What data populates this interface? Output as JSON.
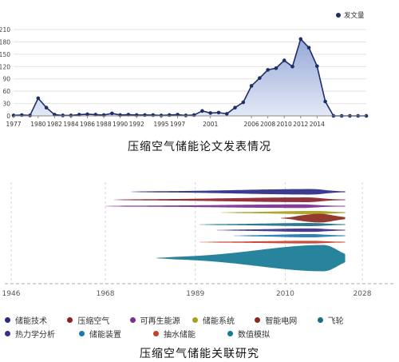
{
  "chart_data": [
    {
      "type": "area",
      "title": "压缩空气储能论文发表情况",
      "legend": [
        "发文量"
      ],
      "legend_position": "top-right",
      "color": "#1f2d6b",
      "fill_color": "#8fa3d4",
      "y_ticks": [
        0,
        30,
        60,
        90,
        120,
        150,
        180,
        210
      ],
      "ylim": [
        0,
        210
      ],
      "x_tick_labels": [
        "1977",
        "1980",
        "1982",
        "1984",
        "1986",
        "1988",
        "1990",
        "1992",
        "1995",
        "1997",
        "2001",
        "2006",
        "2008",
        "2010",
        "2012",
        "2014"
      ],
      "grid": true,
      "series": [
        {
          "name": "发文量",
          "x": [
            1977,
            1978,
            1979,
            1980,
            1981,
            1982,
            1983,
            1984,
            1985,
            1986,
            1987,
            1988,
            1989,
            1990,
            1991,
            1992,
            1993,
            1994,
            1995,
            1996,
            1997,
            1998,
            1999,
            2000,
            2001,
            2002,
            2003,
            2004,
            2005,
            2006,
            2007,
            2008,
            2009,
            2010,
            2011,
            2012,
            2013,
            2014,
            2015,
            2016,
            2017,
            2018,
            2019,
            2020
          ],
          "values": [
            1,
            2,
            1,
            43,
            20,
            3,
            1,
            1,
            3,
            4,
            3,
            2,
            6,
            2,
            3,
            2,
            2,
            2,
            1,
            2,
            3,
            1,
            2,
            12,
            7,
            8,
            5,
            20,
            33,
            73,
            92,
            112,
            116,
            135,
            120,
            187,
            166,
            121,
            35,
            0,
            0,
            0,
            0,
            0
          ]
        }
      ]
    },
    {
      "type": "streamgraph",
      "title": "压缩空气储能关联研究",
      "x_ticks": [
        1946,
        1968,
        1989,
        2010,
        2028
      ],
      "xlim": [
        1946,
        2028
      ],
      "legend_position": "bottom",
      "series": [
        {
          "name": "储能技术",
          "color": "#2a2a86",
          "start": 1974,
          "peak_year": 2016,
          "peak": 3.0
        },
        {
          "name": "压缩空气",
          "color": "#8b1f2a",
          "start": 1970,
          "peak_year": 2015,
          "peak": 2.5
        },
        {
          "name": "可再生能源",
          "color": "#7a2f8f",
          "start": 1968,
          "peak_year": 2014,
          "peak": 1.8
        },
        {
          "name": "储能系统",
          "color": "#a7a019",
          "start": 1995,
          "peak_year": 2017,
          "peak": 1.6
        },
        {
          "name": "智能电网",
          "color": "#8a2a1e",
          "start": 2009,
          "peak_year": 2018,
          "peak": 5.0
        },
        {
          "name": "飞轮",
          "color": "#1a6f86",
          "start": 1990,
          "peak_year": 2016,
          "peak": 1.5
        },
        {
          "name": "热力学分析",
          "color": "#3b2c85",
          "start": 1994,
          "peak_year": 2016,
          "peak": 1.7
        },
        {
          "name": "储能装置",
          "color": "#1e78b4",
          "start": 1998,
          "peak_year": 2016,
          "peak": 1.6
        },
        {
          "name": "抽水储能",
          "color": "#c6402a",
          "start": 1990,
          "peak_year": 2016,
          "peak": 1.2
        },
        {
          "name": "数值模拟",
          "color": "#167a94",
          "start": 1980,
          "peak_year": 2019,
          "peak": 16.0
        }
      ]
    }
  ]
}
